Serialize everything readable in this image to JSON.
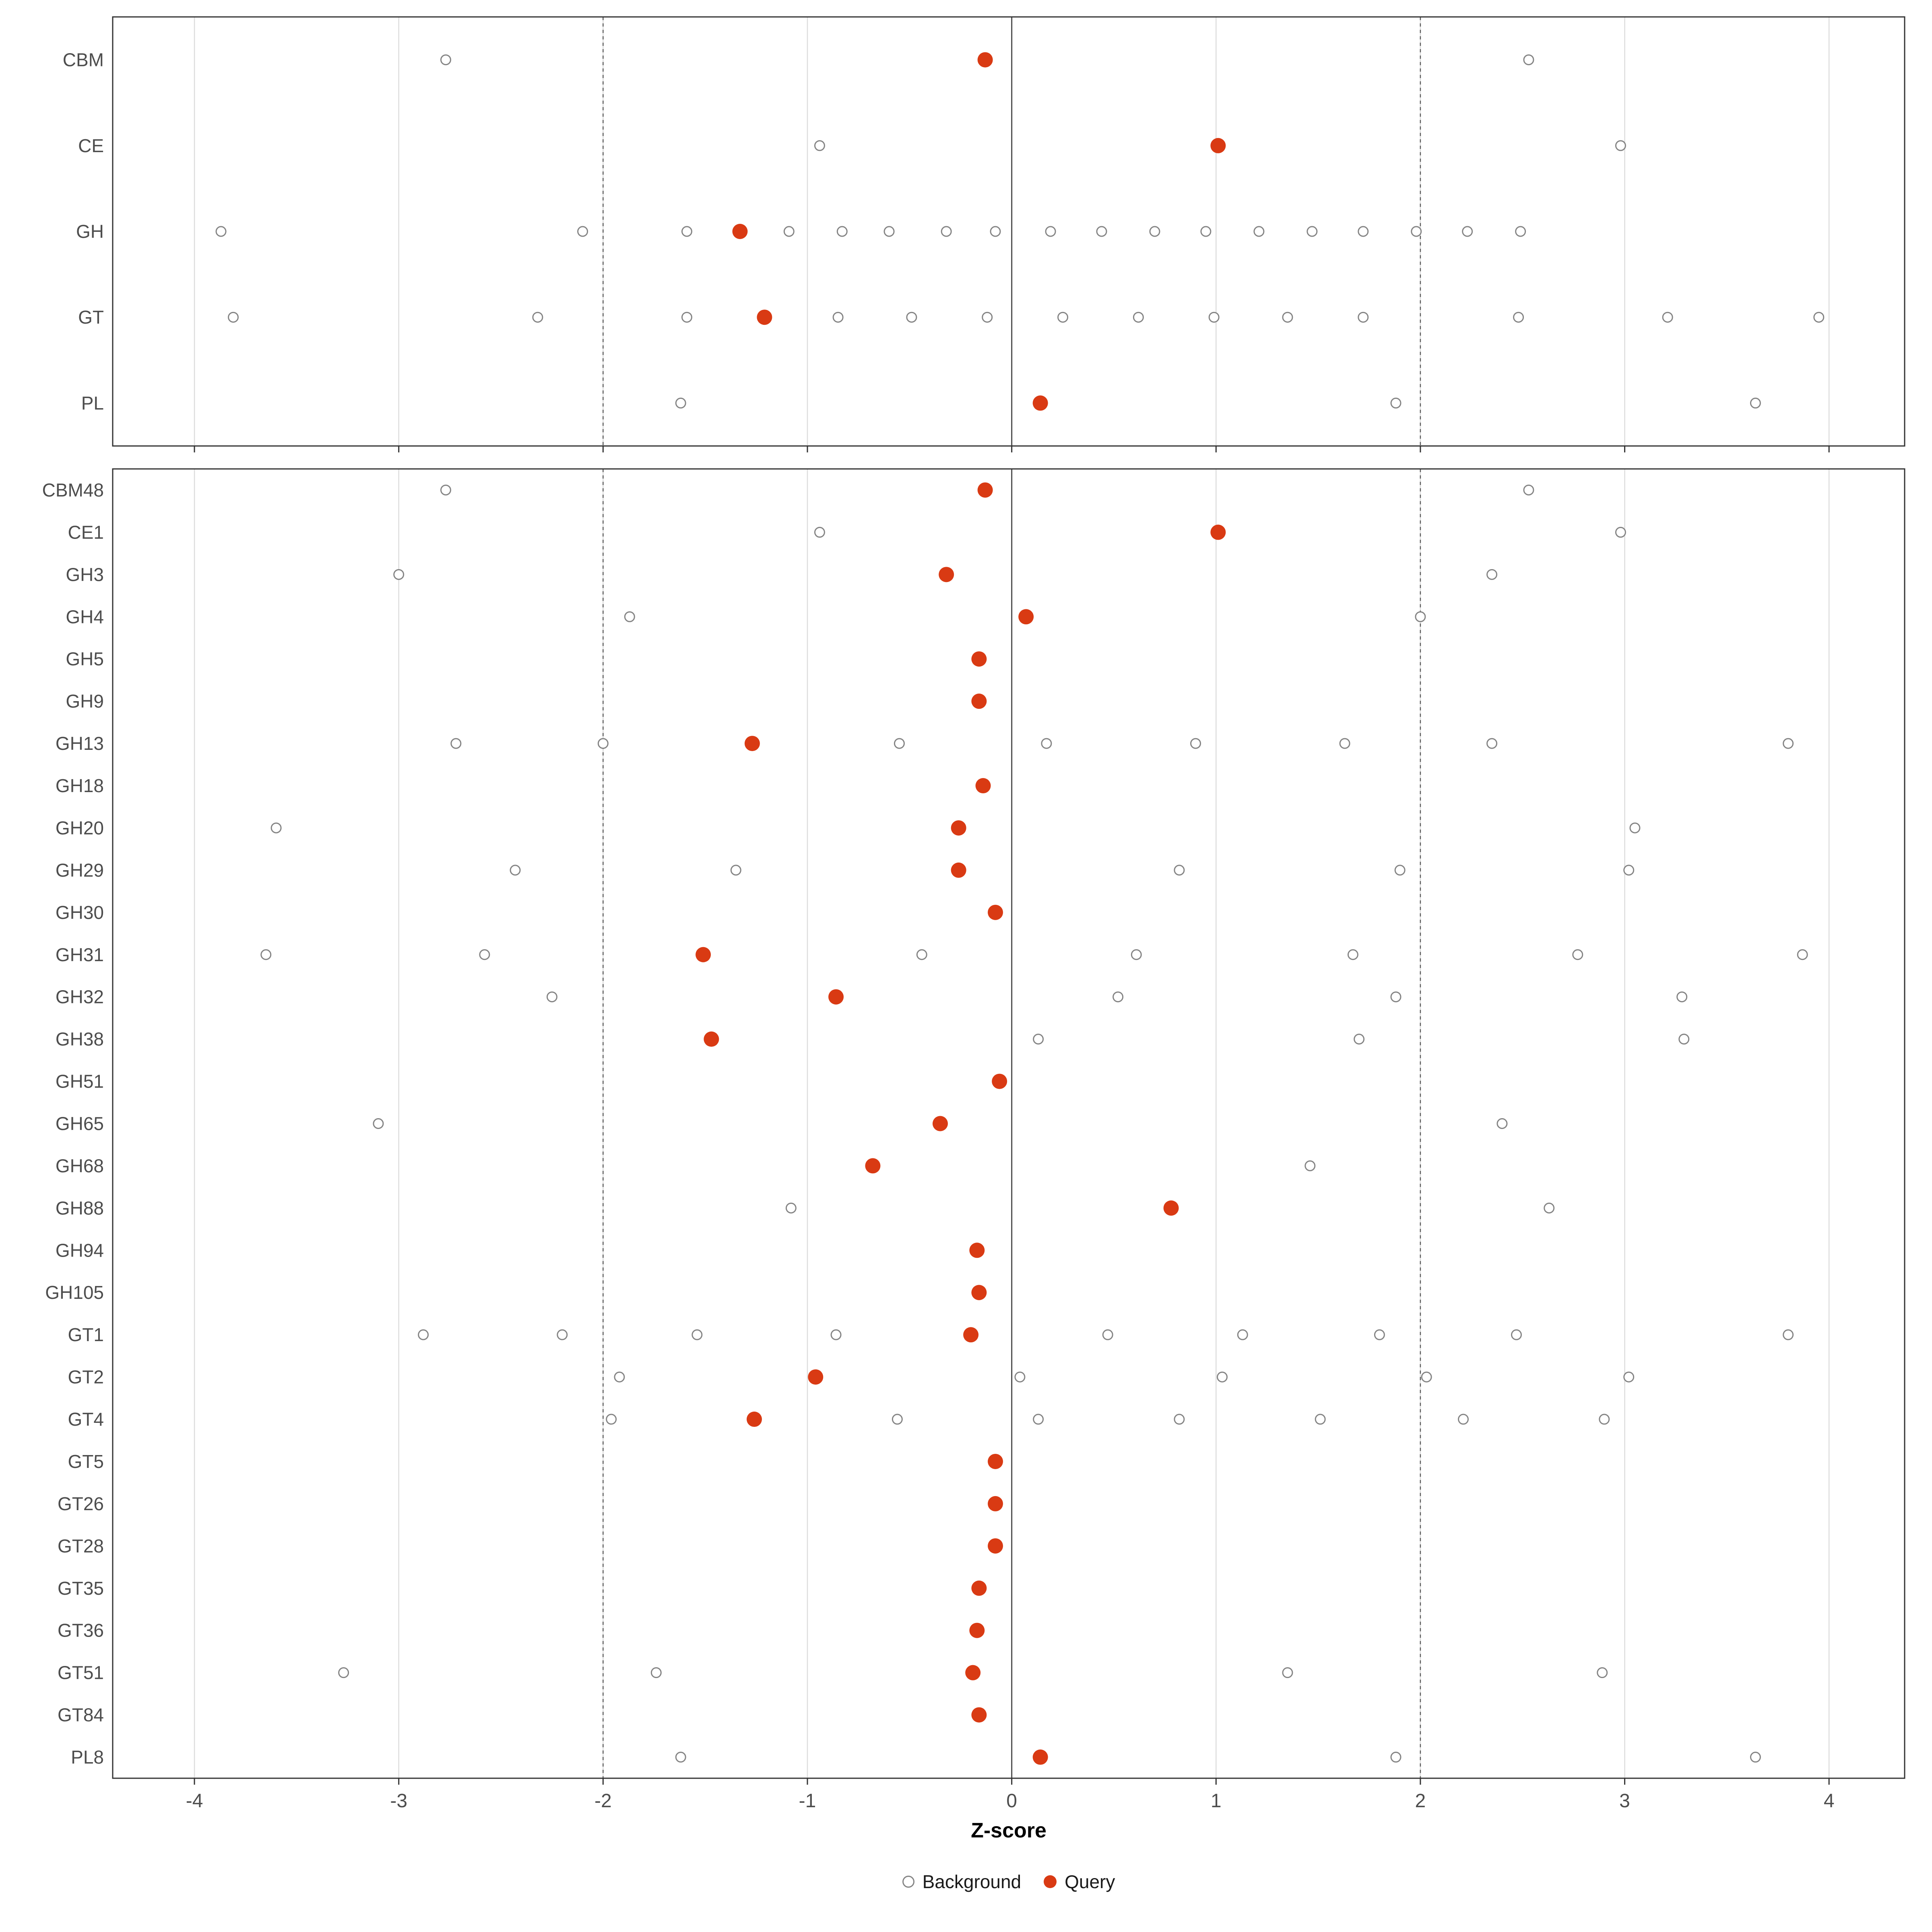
{
  "chart_data": {
    "type": "scatter",
    "title": "",
    "xlabel": "Z-score",
    "ylabel": "",
    "x_ticks": [
      -4,
      -3,
      -2,
      -1,
      0,
      1,
      2,
      3,
      4
    ],
    "xlim": [
      -4.4,
      4.37
    ],
    "grid": "vertical-only",
    "legend_position": "bottom",
    "reference_lines": {
      "solid": [
        0
      ],
      "dashed": [
        -2,
        2
      ]
    },
    "legend": [
      {
        "label": "Background",
        "marker": "open-circle"
      },
      {
        "label": "Query",
        "marker": "filled-circle"
      }
    ],
    "colors": {
      "query": "#d93a13",
      "background_stroke": "#848484",
      "grid": "#dcdcdc",
      "axis_text": "#4d4d4d",
      "panel_border": "#333333",
      "zero_line": "#4d4d4d",
      "dashed_line": "#595959",
      "tick": "#333333"
    },
    "panels": [
      {
        "id": "top",
        "rows": [
          {
            "label": "CBM",
            "background": [
              -2.77,
              2.53
            ],
            "query": -0.13
          },
          {
            "label": "CE",
            "background": [
              -0.94,
              2.98
            ],
            "query": 1.01
          },
          {
            "label": "GH",
            "background": [
              -3.87,
              -2.1,
              -1.59,
              -1.09,
              -0.83,
              -0.6,
              -0.32,
              -0.08,
              0.19,
              0.44,
              0.7,
              0.95,
              1.21,
              1.47,
              1.72,
              1.98,
              2.23,
              2.49
            ],
            "query": -1.33
          },
          {
            "label": "GT",
            "background": [
              -3.81,
              -2.32,
              -1.59,
              -0.85,
              -0.49,
              -0.12,
              0.25,
              0.62,
              0.99,
              1.35,
              1.72,
              2.48,
              3.21,
              3.95
            ],
            "query": -1.21
          },
          {
            "label": "PL",
            "background": [
              -1.62,
              1.88,
              3.64
            ],
            "query": 0.14
          }
        ]
      },
      {
        "id": "bottom",
        "rows": [
          {
            "label": "CBM48",
            "background": [
              -2.77,
              2.53
            ],
            "query": -0.13
          },
          {
            "label": "CE1",
            "background": [
              -0.94,
              2.98
            ],
            "query": 1.01
          },
          {
            "label": "GH3",
            "background": [
              -3.0,
              2.35
            ],
            "query": -0.32
          },
          {
            "label": "GH4",
            "background": [
              -1.87,
              2.0
            ],
            "query": 0.07
          },
          {
            "label": "GH5",
            "background": [],
            "query": -0.16
          },
          {
            "label": "GH9",
            "background": [],
            "query": -0.16
          },
          {
            "label": "GH13",
            "background": [
              -2.72,
              -2.0,
              -0.55,
              0.17,
              0.9,
              1.63,
              2.35,
              3.8
            ],
            "query": -1.27
          },
          {
            "label": "GH18",
            "background": [],
            "query": -0.14
          },
          {
            "label": "GH20",
            "background": [
              -3.6,
              3.05
            ],
            "query": -0.26
          },
          {
            "label": "GH29",
            "background": [
              -2.43,
              -1.35,
              0.82,
              1.9,
              3.02
            ],
            "query": -0.26
          },
          {
            "label": "GH30",
            "background": [],
            "query": -0.08
          },
          {
            "label": "GH31",
            "background": [
              -3.65,
              -2.58,
              -0.44,
              0.61,
              1.67,
              2.77,
              3.87
            ],
            "query": -1.51
          },
          {
            "label": "GH32",
            "background": [
              -2.25,
              0.52,
              1.88,
              3.28
            ],
            "query": -0.86
          },
          {
            "label": "GH38",
            "background": [
              0.13,
              1.7,
              3.29
            ],
            "query": -1.47
          },
          {
            "label": "GH51",
            "background": [],
            "query": -0.06
          },
          {
            "label": "GH65",
            "background": [
              -3.1,
              2.4
            ],
            "query": -0.35
          },
          {
            "label": "GH68",
            "background": [
              1.46
            ],
            "query": -0.68
          },
          {
            "label": "GH88",
            "background": [
              -1.08,
              2.63
            ],
            "query": 0.78
          },
          {
            "label": "GH94",
            "background": [],
            "query": -0.17
          },
          {
            "label": "GH105",
            "background": [],
            "query": -0.16
          },
          {
            "label": "GT1",
            "background": [
              -2.88,
              -2.2,
              -1.54,
              -0.86,
              0.47,
              1.13,
              1.8,
              2.47,
              3.8
            ],
            "query": -0.2
          },
          {
            "label": "GT2",
            "background": [
              -1.92,
              0.04,
              1.03,
              2.03,
              3.02
            ],
            "query": -0.96
          },
          {
            "label": "GT4",
            "background": [
              -1.96,
              -0.56,
              0.13,
              0.82,
              1.51,
              2.21,
              2.9
            ],
            "query": -1.26
          },
          {
            "label": "GT5",
            "background": [],
            "query": -0.08
          },
          {
            "label": "GT26",
            "background": [],
            "query": -0.08
          },
          {
            "label": "GT28",
            "background": [],
            "query": -0.08
          },
          {
            "label": "GT35",
            "background": [],
            "query": -0.16
          },
          {
            "label": "GT36",
            "background": [],
            "query": -0.17
          },
          {
            "label": "GT51",
            "background": [
              -3.27,
              -1.74,
              1.35,
              2.89
            ],
            "query": -0.19
          },
          {
            "label": "GT84",
            "background": [],
            "query": -0.16
          },
          {
            "label": "PL8",
            "background": [
              -1.62,
              1.88,
              3.64
            ],
            "query": 0.14
          }
        ]
      }
    ]
  }
}
